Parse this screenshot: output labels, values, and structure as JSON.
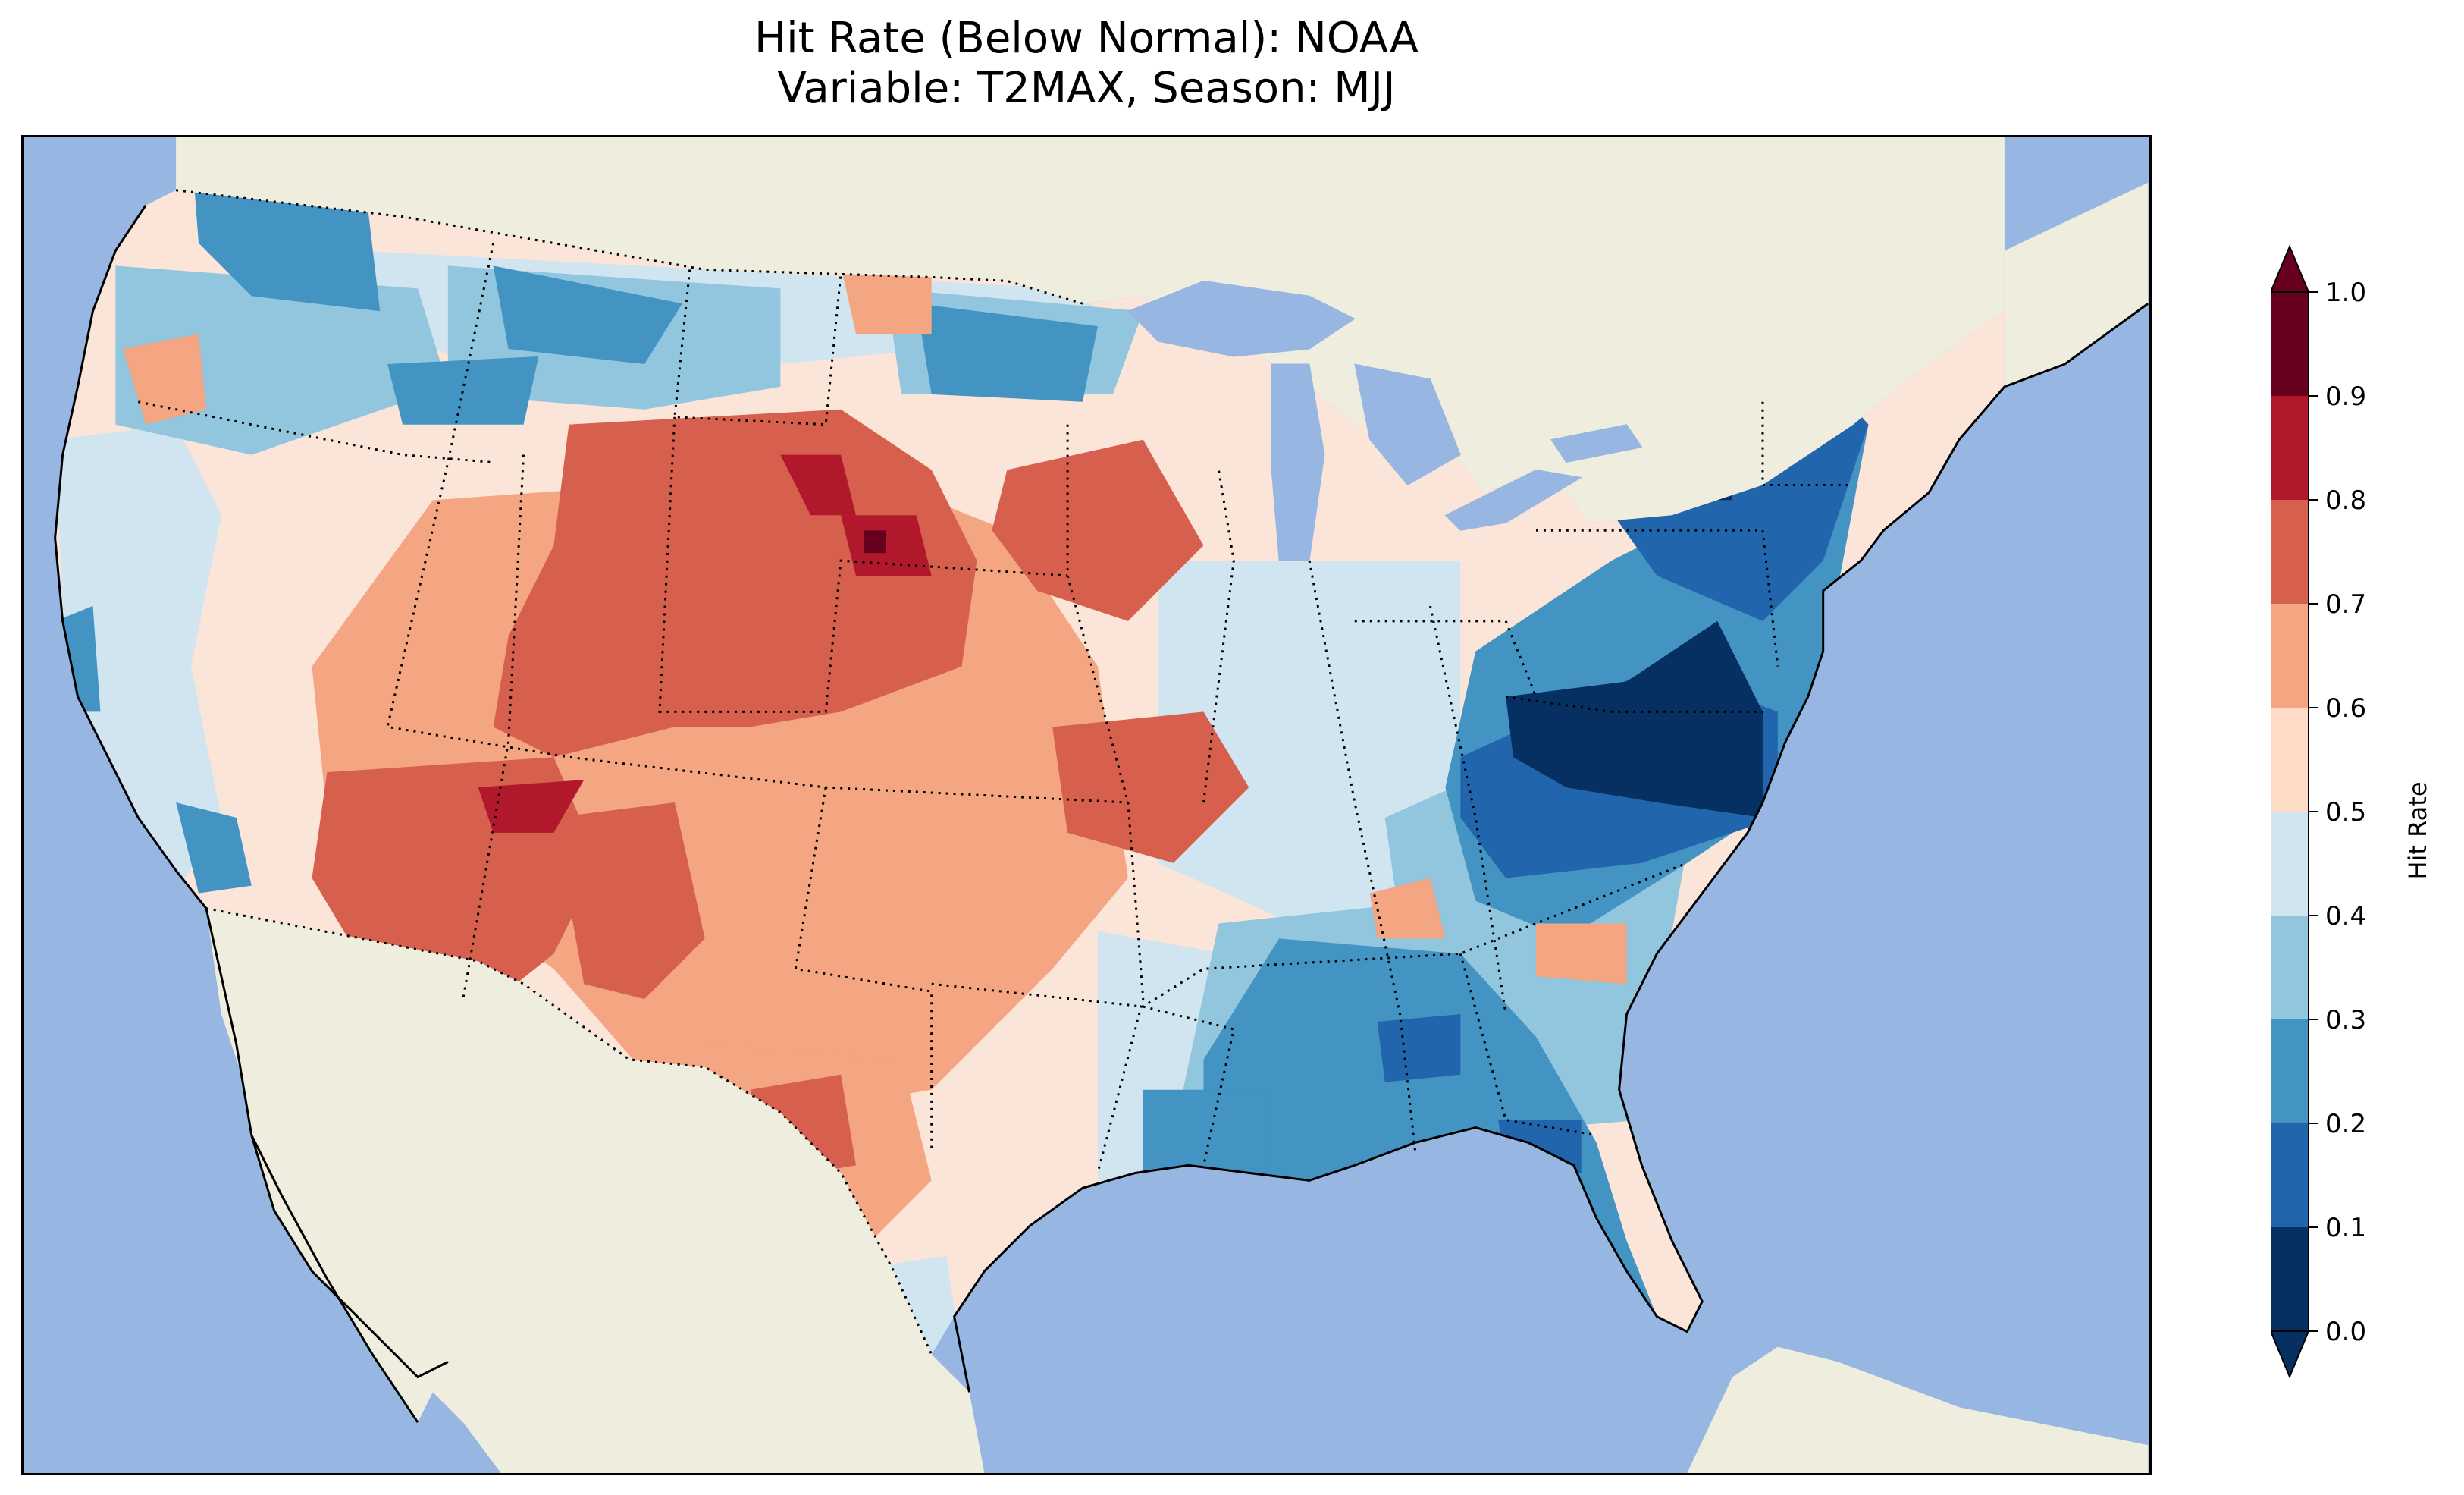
{
  "title": {
    "line1": "Hit Rate (Below Normal): NOAA",
    "line2": "Variable: T2MAX, Season: MJJ"
  },
  "colorbar": {
    "label": "Hit Rate",
    "ticks": [
      "0.0",
      "0.1",
      "0.2",
      "0.3",
      "0.4",
      "0.5",
      "0.6",
      "0.7",
      "0.8",
      "0.9",
      "1.0"
    ],
    "colors": [
      "#053061",
      "#2166ac",
      "#4393c3",
      "#92c5de",
      "#d1e5f0",
      "#fddbc7",
      "#f4a582",
      "#d6604d",
      "#b2182b",
      "#67001f"
    ],
    "extend": "both"
  },
  "map": {
    "ocean_color": "#97b6e1",
    "land_color": "#efedde",
    "lake_color": "#97b6e1"
  }
}
